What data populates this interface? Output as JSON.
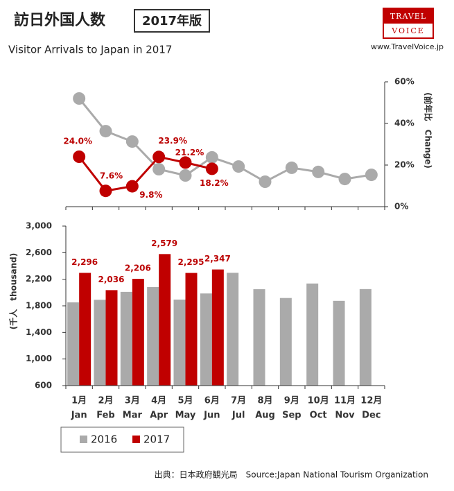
{
  "title": "訪日外国人数",
  "edition": "2017年版",
  "subtitle": "Visitor Arrivals to Japan in 2017",
  "logo": [
    "TRAVEL",
    "VOICE"
  ],
  "url": "www.TravelVoice.jp",
  "source": "出典：日本政府観光局　Source:Japan National Tourism Organization",
  "chart_data": [
    {
      "type": "line",
      "axis_label": "(前年比　Change)",
      "axis_side": "right",
      "ylim": [
        0,
        60
      ],
      "yticks": [
        {
          "value": 0,
          "label": "0%"
        },
        {
          "value": 20,
          "label": "20%"
        },
        {
          "value": 40,
          "label": "40%"
        },
        {
          "value": 60,
          "label": "60%"
        }
      ],
      "series": [
        {
          "color": "#aaaaaa",
          "values": [
            52,
            36.3,
            31.3,
            18,
            15,
            23.7,
            19.3,
            12,
            18.7,
            16.7,
            13.3,
            15.3
          ]
        },
        {
          "color": "#c00000",
          "values": [
            24.0,
            7.6,
            9.8,
            23.9,
            21.2,
            18.2,
            null,
            null,
            null,
            null,
            null,
            null
          ],
          "value_labels": [
            "24.0%",
            "7.6%",
            "9.8%",
            "23.9%",
            "21.2%",
            "18.2%",
            null,
            null,
            null,
            null,
            null,
            null
          ]
        }
      ]
    },
    {
      "type": "bar",
      "axis_label": "(千人　thousand)",
      "categories": [
        "Jan",
        "Feb",
        "Mar",
        "Apr",
        "May",
        "Jun",
        "Jul",
        "Aug",
        "Sep",
        "Oct",
        "Nov",
        "Dec"
      ],
      "categories_ja": [
        "1月",
        "2月",
        "3月",
        "4月",
        "5月",
        "6月",
        "7月",
        "8月",
        "9月",
        "10月",
        "11月",
        "12月"
      ],
      "ylim": [
        600,
        3000
      ],
      "yticks": [
        600,
        {
          "value": 1000,
          "label": "1,000"
        },
        {
          "value": 1400,
          "label": "1,400"
        },
        {
          "value": 1800,
          "label": "1,800"
        },
        {
          "value": 2200,
          "label": "2,200"
        },
        {
          "value": 2600,
          "label": "2,600"
        },
        {
          "value": 3000,
          "label": "3,000"
        }
      ],
      "legend": "bottom-left",
      "series": [
        {
          "name": "2016",
          "color": "#aaaaaa",
          "values": [
            1852,
            1891,
            2010,
            2082,
            1894,
            1986,
            2297,
            2050,
            1918,
            2136,
            1875,
            2052
          ]
        },
        {
          "name": "2017",
          "color": "#c00000",
          "values": [
            2296,
            2036,
            2206,
            2579,
            2295,
            2347,
            null,
            null,
            null,
            null,
            null,
            null
          ],
          "value_labels": [
            "2,296",
            "2,036",
            "2,206",
            "2,579",
            "2,295",
            "2,347",
            null,
            null,
            null,
            null,
            null,
            null
          ]
        }
      ]
    }
  ]
}
